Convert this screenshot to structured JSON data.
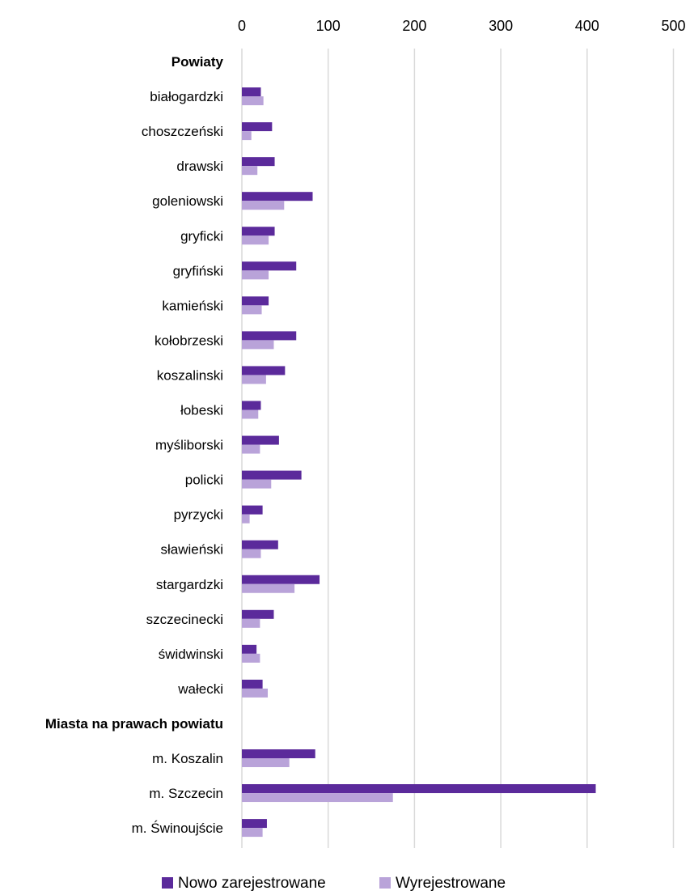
{
  "chart_data": {
    "type": "bar",
    "orientation": "horizontal",
    "title": "",
    "xlabel": "",
    "ylabel": "",
    "xlim": [
      0,
      500
    ],
    "ticks": [
      0,
      100,
      200,
      300,
      400,
      500
    ],
    "tick_labels": [
      "0",
      "100",
      "200",
      "300",
      "400",
      "500"
    ],
    "grid": true,
    "legend_position": "bottom",
    "colors": {
      "Nowo zarejestrowane": "#5b2a9b",
      "Wyrejestrowane": "#b9a3d9"
    },
    "categories": [
      {
        "label": "Powiaty",
        "header": true
      },
      {
        "label": "białogardzki"
      },
      {
        "label": "choszczeński"
      },
      {
        "label": "drawski"
      },
      {
        "label": "goleniowski"
      },
      {
        "label": "gryficki"
      },
      {
        "label": "gryfiński"
      },
      {
        "label": "kamieński"
      },
      {
        "label": "kołobrzeski"
      },
      {
        "label": "koszalinski"
      },
      {
        "label": "łobeski"
      },
      {
        "label": "myśliborski"
      },
      {
        "label": "policki"
      },
      {
        "label": "pyrzycki"
      },
      {
        "label": "sławieński"
      },
      {
        "label": "stargardzki"
      },
      {
        "label": "szczecinecki"
      },
      {
        "label": "świdwinski"
      },
      {
        "label": "wałecki"
      },
      {
        "label": "Miasta na prawach powiatu",
        "header": true
      },
      {
        "label": "m. Koszalin"
      },
      {
        "label": "m. Szczecin"
      },
      {
        "label": "m. Świnoujście"
      }
    ],
    "series": [
      {
        "name": "Nowo zarejestrowane",
        "values": [
          null,
          22,
          35,
          38,
          82,
          38,
          63,
          31,
          63,
          50,
          22,
          43,
          69,
          24,
          42,
          90,
          37,
          17,
          24,
          null,
          85,
          410,
          29
        ]
      },
      {
        "name": "Wyrejestrowane",
        "values": [
          null,
          25,
          11,
          18,
          49,
          31,
          31,
          23,
          37,
          28,
          19,
          21,
          34,
          9,
          22,
          61,
          21,
          21,
          30,
          null,
          55,
          175,
          24
        ]
      }
    ]
  }
}
